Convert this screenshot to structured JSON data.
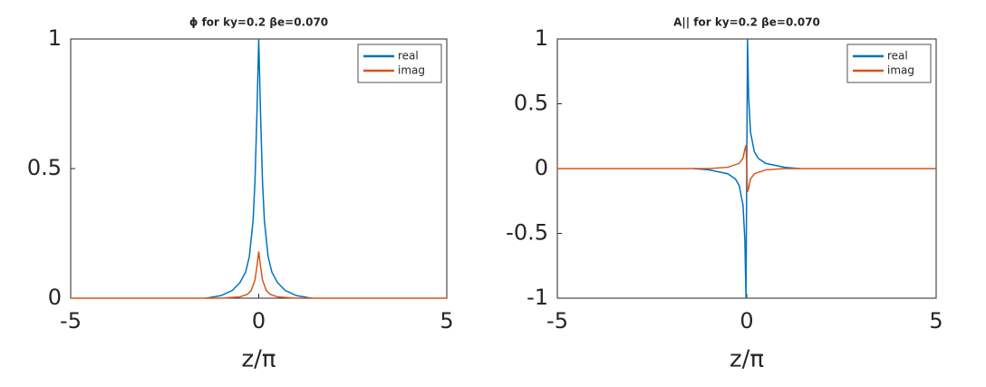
{
  "chart_data": [
    {
      "type": "line",
      "title": "ϕ for ky=0.2 βe=0.070",
      "xlabel": "z/π",
      "xlim": [
        -5,
        5
      ],
      "xticks": [
        -5,
        0,
        5
      ],
      "ylim": [
        0,
        1
      ],
      "yticks": [
        0,
        0.5,
        1
      ],
      "grid": false,
      "legend": "northeast",
      "series": [
        {
          "name": "real",
          "color": "#0072bd",
          "x": [
            -1.4,
            -1,
            -0.7,
            -0.5,
            -0.35,
            -0.25,
            -0.15,
            -0.1,
            -0.05,
            0,
            0.05,
            0.1,
            0.15,
            0.25,
            0.35,
            0.5,
            0.7,
            1,
            1.4
          ],
          "values": [
            0,
            0.01,
            0.03,
            0.06,
            0.1,
            0.16,
            0.3,
            0.45,
            0.7,
            1,
            0.7,
            0.45,
            0.3,
            0.16,
            0.1,
            0.06,
            0.03,
            0.01,
            0
          ]
        },
        {
          "name": "imag",
          "color": "#d95319",
          "x": [
            -5,
            -1,
            -0.5,
            -0.3,
            -0.2,
            -0.1,
            -0.05,
            0,
            0.05,
            0.1,
            0.2,
            0.3,
            0.5,
            1,
            5
          ],
          "values": [
            0,
            0,
            0.005,
            0.015,
            0.03,
            0.07,
            0.12,
            0.18,
            0.12,
            0.07,
            0.03,
            0.015,
            0.005,
            0,
            0
          ]
        }
      ]
    },
    {
      "type": "line",
      "title": "A|| for ky=0.2 βe=0.070",
      "xlabel": "z/π",
      "xlim": [
        -5,
        5
      ],
      "xticks": [
        -5,
        0,
        5
      ],
      "ylim": [
        -1,
        1
      ],
      "yticks": [
        -1,
        -0.5,
        0,
        0.5,
        1
      ],
      "grid": false,
      "legend": "northeast",
      "series": [
        {
          "name": "real",
          "color": "#0072bd",
          "x": [
            -1.4,
            -1,
            -0.5,
            -0.3,
            -0.2,
            -0.1,
            -0.05,
            -0.02,
            0.02,
            0.05,
            0.1,
            0.2,
            0.3,
            0.5,
            1,
            1.4
          ],
          "values": [
            0,
            -0.01,
            -0.04,
            -0.08,
            -0.13,
            -0.28,
            -0.55,
            -1,
            1,
            0.55,
            0.28,
            0.13,
            0.08,
            0.04,
            0.01,
            0
          ]
        },
        {
          "name": "imag",
          "color": "#d95319",
          "x": [
            -5,
            -1,
            -0.5,
            -0.2,
            -0.1,
            -0.05,
            -0.02,
            0.02,
            0.05,
            0.1,
            0.2,
            0.5,
            1,
            5
          ],
          "values": [
            0,
            0,
            0.01,
            0.04,
            0.08,
            0.15,
            0.18,
            -0.18,
            -0.15,
            -0.08,
            -0.04,
            -0.01,
            0,
            0
          ]
        }
      ]
    }
  ]
}
